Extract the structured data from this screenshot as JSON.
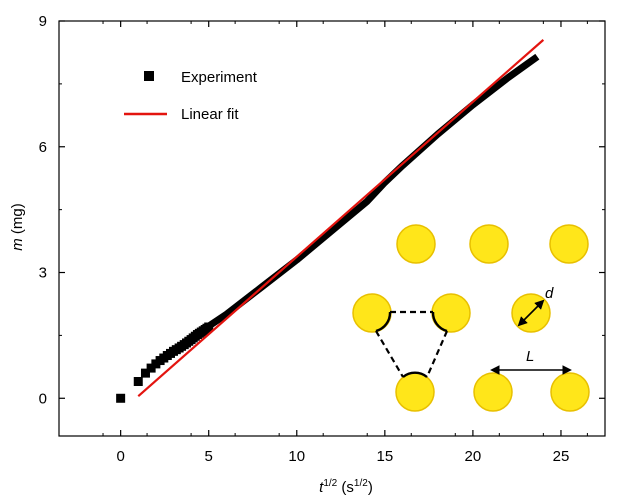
{
  "chart_data": {
    "type": "scatter",
    "xlabel": {
      "base": "t",
      "sup": "1/2",
      "unit_open": " (s",
      "unit_sup": "1/2",
      "unit_close": ")"
    },
    "ylabel": {
      "var": "m",
      "unit": " (mg)"
    },
    "xlim": [
      -3.5,
      27.5
    ],
    "ylim": [
      -0.9,
      9
    ],
    "x_ticks": [
      0,
      5,
      10,
      15,
      20,
      25
    ],
    "y_ticks": [
      0,
      3,
      6,
      9
    ],
    "x_tick_labels": [
      "0",
      "5",
      "10",
      "15",
      "20",
      "25"
    ],
    "y_tick_labels": [
      "0",
      "3",
      "6",
      "9"
    ],
    "grid": false,
    "legend": {
      "placement": "top-left",
      "experiment_label": "Experiment",
      "fit_label": "Linear fit"
    },
    "series": [
      {
        "name": "Experiment",
        "marker": "square",
        "color": "#000000",
        "x": [
          0,
          1.0,
          1.41,
          1.73,
          2.0,
          2.24,
          2.45,
          2.65,
          2.83,
          3.0,
          3.16,
          3.32,
          3.46,
          3.61,
          3.74,
          3.87,
          4.0,
          4.12,
          4.24,
          4.36,
          4.47,
          4.58,
          4.69,
          4.8,
          4.9,
          5.0
        ],
        "y": [
          0,
          0.4,
          0.6,
          0.72,
          0.82,
          0.9,
          0.96,
          1.02,
          1.07,
          1.12,
          1.16,
          1.2,
          1.24,
          1.28,
          1.32,
          1.36,
          1.4,
          1.44,
          1.48,
          1.52,
          1.55,
          1.58,
          1.61,
          1.64,
          1.67,
          1.7
        ],
        "dense_curve": {
          "x": [
            5,
            6,
            8,
            10,
            12,
            14,
            15,
            16,
            18,
            20,
            22,
            23,
            23.5
          ],
          "y": [
            1.72,
            2.0,
            2.65,
            3.3,
            4.0,
            4.7,
            5.15,
            5.55,
            6.3,
            7.0,
            7.65,
            7.95,
            8.1
          ]
        }
      },
      {
        "name": "Linear fit",
        "type": "line",
        "color": "#e3140f",
        "x": [
          1.0,
          24.0
        ],
        "y": [
          0.05,
          8.55
        ]
      }
    ],
    "inset": {
      "d_label": "d",
      "L_label": "L",
      "circle_color": "#ffe61a",
      "circle_stroke": "#e8c000"
    }
  }
}
